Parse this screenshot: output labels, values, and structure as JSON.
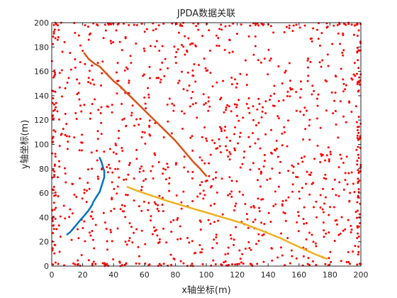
{
  "chart_data": {
    "type": "scatter",
    "title": "JPDA数据关联",
    "xlabel": "x轴坐标(m)",
    "ylabel": "y轴坐标(m)",
    "xlim": [
      0,
      200
    ],
    "ylim": [
      0,
      200
    ],
    "xticks": [
      0,
      20,
      40,
      60,
      80,
      100,
      120,
      140,
      160,
      180,
      200
    ],
    "yticks": [
      0,
      20,
      40,
      60,
      80,
      100,
      120,
      140,
      160,
      180,
      200
    ],
    "grid": false,
    "legend": "none",
    "clutter": {
      "color": "#ff0000",
      "count_approx": 1000,
      "distribution": "uniform over [0,200] x [0,200]"
    },
    "series": [
      {
        "color": "#d95319",
        "x": [
          21,
          24,
          28,
          31,
          34,
          37,
          40,
          44,
          48,
          52,
          56,
          60,
          64,
          68,
          72,
          76,
          80,
          84,
          88,
          92,
          96,
          100
        ],
        "y": [
          175,
          170,
          166,
          164,
          160,
          156,
          152,
          148,
          143,
          138,
          133,
          128,
          123,
          118,
          113,
          108,
          103,
          97,
          91,
          85,
          80,
          74
        ]
      },
      {
        "color": "#0072bd",
        "x": [
          10,
          12,
          14,
          16,
          18,
          20,
          22,
          24,
          26,
          27,
          29,
          31,
          32,
          33,
          34,
          34,
          33,
          32,
          31
        ],
        "y": [
          26,
          28,
          31,
          34,
          37,
          40,
          43,
          46,
          50,
          53,
          57,
          61,
          65,
          69,
          73,
          78,
          82,
          86,
          89
        ]
      },
      {
        "color": "#edb120",
        "x": [
          49,
          55,
          62,
          69,
          76,
          84,
          92,
          100,
          108,
          116,
          124,
          132,
          140,
          148,
          156,
          163,
          170,
          178
        ],
        "y": [
          65,
          62,
          59,
          56,
          53,
          50,
          47,
          44,
          41,
          38,
          35,
          31,
          27,
          23,
          18,
          14,
          10,
          6
        ]
      }
    ]
  }
}
